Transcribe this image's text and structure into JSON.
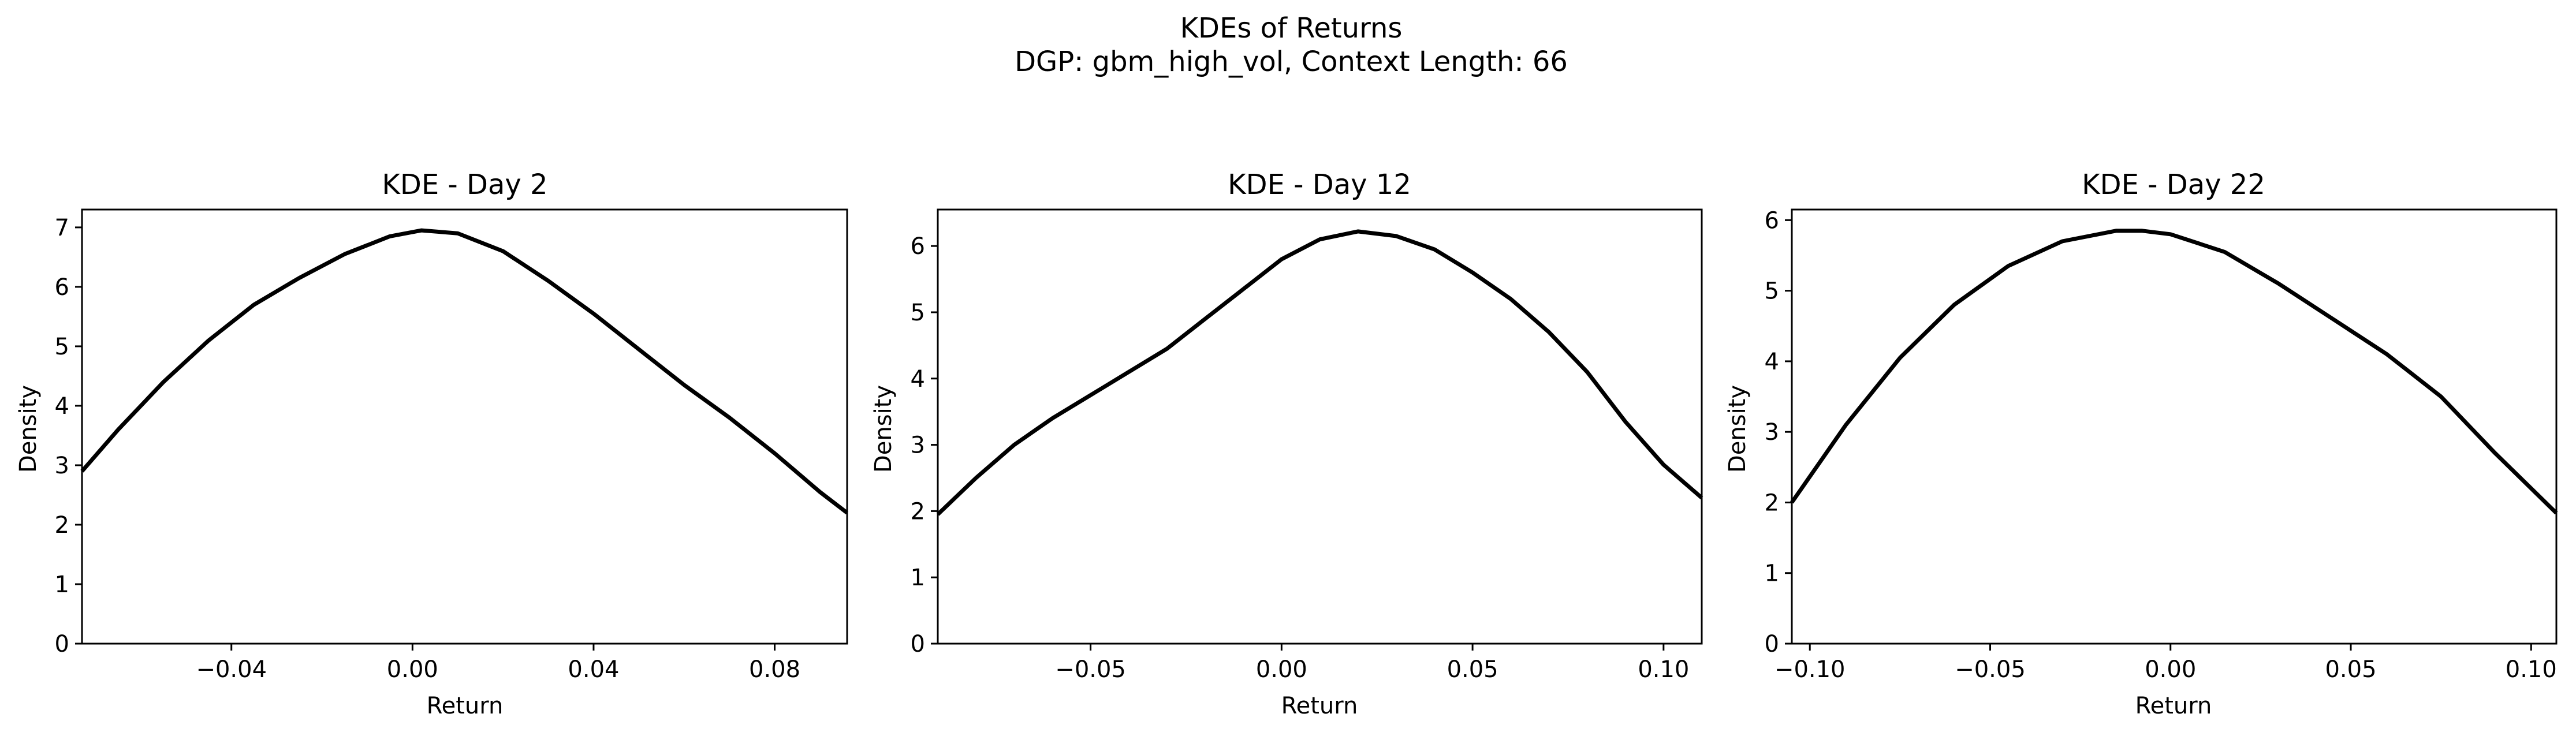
{
  "suptitle": {
    "line1": "KDEs of Returns",
    "line2": "DGP: gbm_high_vol, Context Length: 66"
  },
  "colors": {
    "line": "#000000",
    "axes": "#000000",
    "background": "#ffffff"
  },
  "chart_data": [
    {
      "type": "line",
      "title": "KDE - Day 2",
      "xlabel": "Return",
      "ylabel": "Density",
      "xlim": [
        -0.073,
        0.096
      ],
      "ylim": [
        0,
        7.3
      ],
      "xticks": [
        -0.04,
        0.0,
        0.04,
        0.08
      ],
      "xtick_labels": [
        "−0.04",
        "0.00",
        "0.04",
        "0.08"
      ],
      "yticks": [
        0,
        1,
        2,
        3,
        4,
        5,
        6,
        7
      ],
      "ytick_labels": [
        "0",
        "1",
        "2",
        "3",
        "4",
        "5",
        "6",
        "7"
      ],
      "grid": false,
      "series": [
        {
          "x": [
            -0.073,
            -0.065,
            -0.055,
            -0.045,
            -0.035,
            -0.025,
            -0.015,
            -0.005,
            0.002,
            0.01,
            0.02,
            0.03,
            0.04,
            0.05,
            0.06,
            0.07,
            0.08,
            0.09,
            0.096
          ],
          "y": [
            2.9,
            3.6,
            4.4,
            5.1,
            5.7,
            6.15,
            6.55,
            6.85,
            6.95,
            6.9,
            6.6,
            6.1,
            5.55,
            4.95,
            4.35,
            3.8,
            3.2,
            2.55,
            2.2
          ]
        }
      ]
    },
    {
      "type": "line",
      "title": "KDE - Day 12",
      "xlabel": "Return",
      "ylabel": "Density",
      "xlim": [
        -0.09,
        0.11
      ],
      "ylim": [
        0,
        6.55
      ],
      "xticks": [
        -0.05,
        0.0,
        0.05,
        0.1
      ],
      "xtick_labels": [
        "−0.05",
        "0.00",
        "0.05",
        "0.10"
      ],
      "yticks": [
        0,
        1,
        2,
        3,
        4,
        5,
        6
      ],
      "ytick_labels": [
        "0",
        "1",
        "2",
        "3",
        "4",
        "5",
        "6"
      ],
      "grid": false,
      "series": [
        {
          "x": [
            -0.09,
            -0.08,
            -0.07,
            -0.06,
            -0.05,
            -0.04,
            -0.03,
            -0.02,
            -0.01,
            0.0,
            0.01,
            0.02,
            0.03,
            0.04,
            0.05,
            0.06,
            0.07,
            0.08,
            0.09,
            0.1,
            0.11
          ],
          "y": [
            1.95,
            2.5,
            3.0,
            3.4,
            3.75,
            4.1,
            4.45,
            4.9,
            5.35,
            5.8,
            6.1,
            6.22,
            6.15,
            5.95,
            5.6,
            5.2,
            4.7,
            4.1,
            3.35,
            2.7,
            2.2
          ]
        }
      ]
    },
    {
      "type": "line",
      "title": "KDE - Day 22",
      "xlabel": "Return",
      "ylabel": "Density",
      "xlim": [
        -0.105,
        0.107
      ],
      "ylim": [
        0,
        6.15
      ],
      "xticks": [
        -0.1,
        -0.05,
        0.0,
        0.05,
        0.1
      ],
      "xtick_labels": [
        "−0.10",
        "−0.05",
        "0.00",
        "0.05",
        "0.10"
      ],
      "yticks": [
        0,
        1,
        2,
        3,
        4,
        5,
        6
      ],
      "ytick_labels": [
        "0",
        "1",
        "2",
        "3",
        "4",
        "5",
        "6"
      ],
      "grid": false,
      "series": [
        {
          "x": [
            -0.105,
            -0.09,
            -0.075,
            -0.06,
            -0.045,
            -0.03,
            -0.015,
            -0.008,
            0.0,
            0.015,
            0.03,
            0.045,
            0.06,
            0.075,
            0.09,
            0.107
          ],
          "y": [
            2.0,
            3.1,
            4.05,
            4.8,
            5.35,
            5.7,
            5.85,
            5.85,
            5.8,
            5.55,
            5.1,
            4.6,
            4.1,
            3.5,
            2.7,
            1.85
          ]
        }
      ]
    }
  ]
}
